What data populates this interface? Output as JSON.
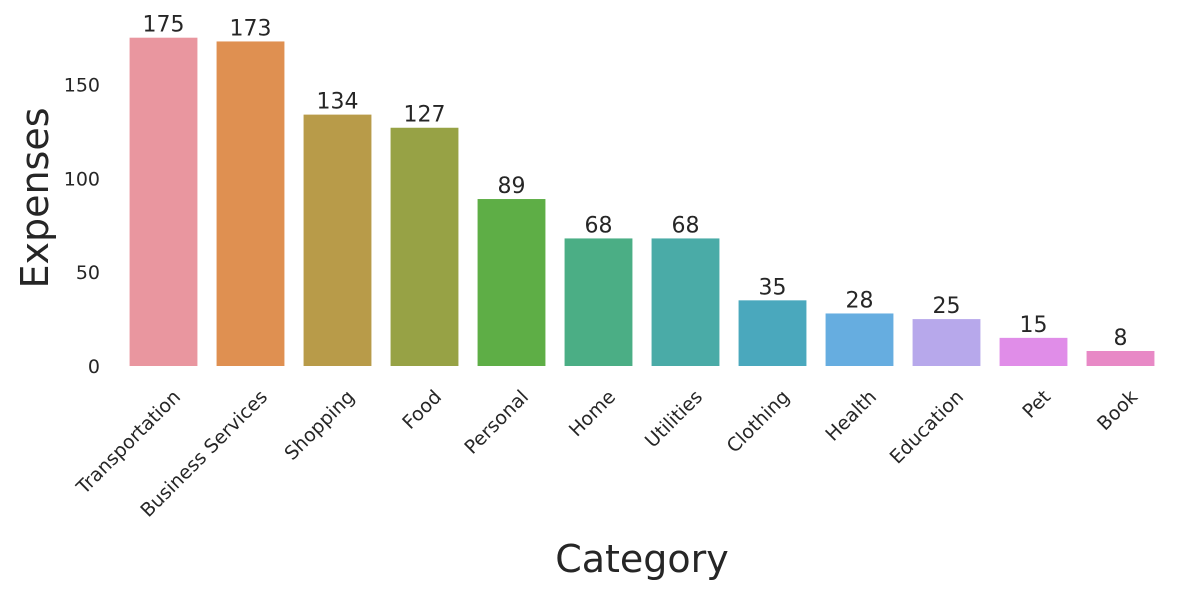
{
  "chart_data": {
    "type": "bar",
    "xlabel": "Category",
    "ylabel": "Expenses",
    "ylim": [
      0,
      175
    ],
    "yticks": [
      0,
      50,
      100,
      150
    ],
    "grid": false,
    "categories": [
      "Transportation",
      "Business Services",
      "Shopping",
      "Food",
      "Personal",
      "Home",
      "Utilities",
      "Clothing",
      "Health",
      "Education",
      "Pet",
      "Book"
    ],
    "values": [
      175,
      173,
      134,
      127,
      89,
      68,
      68,
      35,
      28,
      25,
      15,
      8
    ],
    "data_labels": [
      "175",
      "173",
      "134",
      "127",
      "89",
      "68",
      "68",
      "35",
      "28",
      "25",
      "15",
      "8"
    ],
    "colors": [
      "#e9969f",
      "#df9051",
      "#b89b49",
      "#97a245",
      "#5eae46",
      "#4bae85",
      "#4aaba7",
      "#4aa8bd",
      "#66ade0",
      "#b7a8eb",
      "#e08de8",
      "#e889c6"
    ]
  }
}
